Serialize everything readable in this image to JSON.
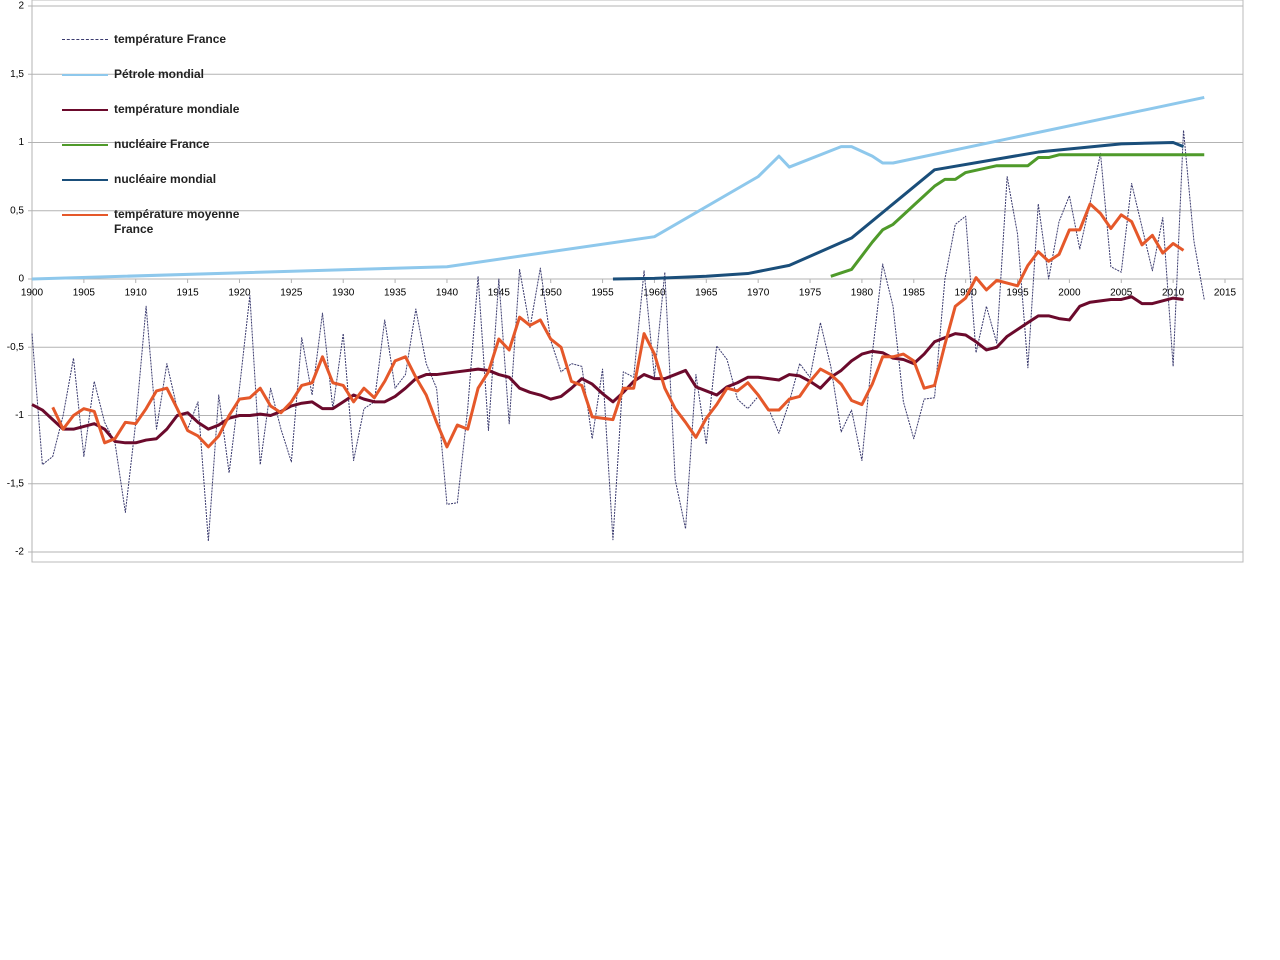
{
  "chart_data": {
    "type": "line",
    "xlim": [
      1900,
      2015
    ],
    "ylim": [
      -2,
      2
    ],
    "xticks": [
      1900,
      1905,
      1910,
      1915,
      1920,
      1925,
      1930,
      1935,
      1940,
      1945,
      1950,
      1955,
      1960,
      1965,
      1970,
      1975,
      1980,
      1985,
      1990,
      1995,
      2000,
      2005,
      2010,
      2015
    ],
    "yticks": [
      -2,
      {
        "value": -1.5,
        "label": "-1,5"
      },
      -1,
      {
        "value": -0.5,
        "label": "-0,5"
      },
      0,
      {
        "value": 0.5,
        "label": "0,5"
      },
      1,
      {
        "value": 1.5,
        "label": "1,5"
      },
      2
    ],
    "grid": true,
    "legend": "upper left",
    "series": [
      {
        "name": "température France",
        "color": "#3a3a6e",
        "dashed": true,
        "x": [
          1900,
          1901,
          1902,
          1903,
          1904,
          1905,
          1906,
          1907,
          1908,
          1909,
          1910,
          1911,
          1912,
          1913,
          1914,
          1915,
          1916,
          1917,
          1918,
          1919,
          1920,
          1921,
          1922,
          1923,
          1924,
          1925,
          1926,
          1927,
          1928,
          1929,
          1930,
          1931,
          1932,
          1933,
          1934,
          1935,
          1936,
          1937,
          1938,
          1939,
          1940,
          1941,
          1942,
          1943,
          1944,
          1945,
          1946,
          1947,
          1948,
          1949,
          1950,
          1951,
          1952,
          1953,
          1954,
          1955,
          1956,
          1957,
          1958,
          1959,
          1960,
          1961,
          1962,
          1963,
          1964,
          1965,
          1966,
          1967,
          1968,
          1969,
          1970,
          1971,
          1972,
          1973,
          1974,
          1975,
          1976,
          1977,
          1978,
          1979,
          1980,
          1981,
          1982,
          1983,
          1984,
          1985,
          1986,
          1987,
          1988,
          1989,
          1990,
          1991,
          1992,
          1993,
          1994,
          1995,
          1996,
          1997,
          1998,
          1999,
          2000,
          2001,
          2002,
          2003,
          2004,
          2005,
          2006,
          2007,
          2008,
          2009,
          2010,
          2011,
          2012,
          2013
        ],
        "values": [
          -0.4,
          -1.36,
          -1.3,
          -1.0,
          -0.58,
          -1.3,
          -0.75,
          -1.05,
          -1.2,
          -1.71,
          -1.05,
          -0.2,
          -1.1,
          -0.62,
          -0.95,
          -1.1,
          -0.9,
          -1.92,
          -0.85,
          -1.42,
          -0.8,
          -0.12,
          -1.36,
          -0.8,
          -1.1,
          -1.34,
          -0.43,
          -0.85,
          -0.25,
          -0.95,
          -0.4,
          -1.33,
          -0.95,
          -0.9,
          -0.3,
          -0.8,
          -0.7,
          -0.22,
          -0.62,
          -0.8,
          -1.65,
          -1.64,
          -0.95,
          0.02,
          -1.11,
          0.0,
          -1.06,
          0.07,
          -0.36,
          0.08,
          -0.45,
          -0.68,
          -0.62,
          -0.64,
          -1.17,
          -0.66,
          -1.91,
          -0.68,
          -0.72,
          0.06,
          -0.72,
          0.05,
          -1.47,
          -1.83,
          -0.7,
          -1.21,
          -0.49,
          -0.59,
          -0.88,
          -0.95,
          -0.86,
          -0.95,
          -1.13,
          -0.9,
          -0.62,
          -0.72,
          -0.32,
          -0.64,
          -1.12,
          -0.96,
          -1.33,
          -0.55,
          0.11,
          -0.2,
          -0.9,
          -1.17,
          -0.88,
          -0.87,
          0.0,
          0.4,
          0.46,
          -0.54,
          -0.2,
          -0.47,
          0.75,
          0.33,
          -0.65,
          0.55,
          0.0,
          0.42,
          0.61,
          0.22,
          0.56,
          0.92,
          0.09,
          0.05,
          0.7,
          0.38,
          0.06,
          0.45,
          -0.64,
          1.09,
          0.28,
          -0.15
        ]
      },
      {
        "name": "Pétrole mondial",
        "color": "#8ec8ec",
        "x": [
          1900,
          1940,
          1960,
          1970,
          1972,
          1973,
          1978,
          1979,
          1981,
          1982,
          1983,
          2013
        ],
        "values": [
          0,
          0.09,
          0.31,
          0.75,
          0.9,
          0.82,
          0.97,
          0.97,
          0.9,
          0.85,
          0.85,
          1.33
        ]
      },
      {
        "name": "température mondiale",
        "color": "#6b0a2c",
        "x": [
          1900,
          1901,
          1902,
          1903,
          1904,
          1905,
          1906,
          1907,
          1908,
          1909,
          1910,
          1911,
          1912,
          1913,
          1914,
          1915,
          1916,
          1917,
          1918,
          1919,
          1920,
          1921,
          1922,
          1923,
          1924,
          1925,
          1926,
          1927,
          1928,
          1929,
          1930,
          1931,
          1932,
          1933,
          1934,
          1935,
          1936,
          1937,
          1938,
          1939,
          1940,
          1941,
          1942,
          1943,
          1944,
          1945,
          1946,
          1947,
          1948,
          1949,
          1950,
          1951,
          1952,
          1953,
          1954,
          1955,
          1956,
          1957,
          1958,
          1959,
          1960,
          1961,
          1962,
          1963,
          1964,
          1965,
          1966,
          1967,
          1968,
          1969,
          1970,
          1971,
          1972,
          1973,
          1974,
          1975,
          1976,
          1977,
          1978,
          1979,
          1980,
          1981,
          1982,
          1983,
          1984,
          1985,
          1986,
          1987,
          1988,
          1989,
          1990,
          1991,
          1992,
          1993,
          1994,
          1995,
          1996,
          1997,
          1998,
          1999,
          2000,
          2001,
          2002,
          2003,
          2004,
          2005,
          2006,
          2007,
          2008,
          2009,
          2010,
          2011
        ],
        "values": [
          -0.92,
          -0.96,
          -1.03,
          -1.1,
          -1.1,
          -1.08,
          -1.06,
          -1.1,
          -1.19,
          -1.2,
          -1.2,
          -1.18,
          -1.17,
          -1.1,
          -1.0,
          -0.98,
          -1.05,
          -1.1,
          -1.07,
          -1.02,
          -1.0,
          -1.0,
          -0.99,
          -1.0,
          -0.97,
          -0.93,
          -0.91,
          -0.9,
          -0.95,
          -0.95,
          -0.9,
          -0.85,
          -0.88,
          -0.9,
          -0.9,
          -0.86,
          -0.8,
          -0.73,
          -0.7,
          -0.7,
          -0.69,
          -0.68,
          -0.67,
          -0.66,
          -0.67,
          -0.7,
          -0.72,
          -0.8,
          -0.83,
          -0.85,
          -0.88,
          -0.86,
          -0.8,
          -0.73,
          -0.77,
          -0.84,
          -0.9,
          -0.83,
          -0.75,
          -0.7,
          -0.73,
          -0.73,
          -0.7,
          -0.67,
          -0.79,
          -0.82,
          -0.85,
          -0.79,
          -0.76,
          -0.72,
          -0.72,
          -0.73,
          -0.74,
          -0.7,
          -0.71,
          -0.75,
          -0.8,
          -0.72,
          -0.67,
          -0.6,
          -0.55,
          -0.53,
          -0.54,
          -0.58,
          -0.59,
          -0.62,
          -0.55,
          -0.46,
          -0.43,
          -0.4,
          -0.41,
          -0.46,
          -0.52,
          -0.5,
          -0.42,
          -0.37,
          -0.32,
          -0.27,
          -0.27,
          -0.29,
          -0.3,
          -0.2,
          -0.17,
          -0.16,
          -0.15,
          -0.15,
          -0.13,
          -0.18,
          -0.18,
          -0.16,
          -0.14,
          -0.15
        ]
      },
      {
        "name": "nucléaire France",
        "color": "#4f9a2a",
        "x": [
          1977,
          1979,
          1980,
          1981,
          1982,
          1983,
          1984,
          1985,
          1986,
          1987,
          1988,
          1989,
          1990,
          1993,
          1996,
          1997,
          1998,
          1999,
          2013
        ],
        "values": [
          0.02,
          0.07,
          0.17,
          0.27,
          0.36,
          0.4,
          0.47,
          0.54,
          0.61,
          0.68,
          0.73,
          0.73,
          0.78,
          0.83,
          0.83,
          0.89,
          0.89,
          0.91,
          0.91
        ]
      },
      {
        "name": "nucléaire mondial",
        "color": "#1a4e7a",
        "x": [
          1956,
          1960,
          1965,
          1969,
          1973,
          1979,
          1983,
          1987,
          1997,
          2005,
          2010,
          2011
        ],
        "values": [
          0,
          0.005,
          0.02,
          0.04,
          0.1,
          0.3,
          0.55,
          0.8,
          0.93,
          0.99,
          1.0,
          0.97
        ]
      },
      {
        "name": "température moyenne France",
        "color": "#e5582a",
        "x": [
          1902,
          1903,
          1904,
          1905,
          1906,
          1907,
          1908,
          1909,
          1910,
          1911,
          1912,
          1913,
          1914,
          1915,
          1916,
          1917,
          1918,
          1919,
          1920,
          1921,
          1922,
          1923,
          1924,
          1925,
          1926,
          1927,
          1928,
          1929,
          1930,
          1931,
          1932,
          1933,
          1934,
          1935,
          1936,
          1937,
          1938,
          1939,
          1940,
          1941,
          1942,
          1943,
          1944,
          1945,
          1946,
          1947,
          1948,
          1949,
          1950,
          1951,
          1952,
          1953,
          1954,
          1955,
          1956,
          1957,
          1958,
          1959,
          1960,
          1961,
          1962,
          1963,
          1964,
          1965,
          1966,
          1967,
          1968,
          1969,
          1970,
          1971,
          1972,
          1973,
          1974,
          1975,
          1976,
          1977,
          1978,
          1979,
          1980,
          1981,
          1982,
          1983,
          1984,
          1985,
          1986,
          1987,
          1988,
          1989,
          1990,
          1991,
          1992,
          1993,
          1994,
          1995,
          1996,
          1997,
          1998,
          1999,
          2000,
          2001,
          2002,
          2003,
          2004,
          2005,
          2006,
          2007,
          2008,
          2009,
          2010,
          2011
        ],
        "values": [
          -0.94,
          -1.1,
          -1.0,
          -0.95,
          -0.97,
          -1.2,
          -1.17,
          -1.05,
          -1.06,
          -0.95,
          -0.82,
          -0.8,
          -0.95,
          -1.11,
          -1.15,
          -1.23,
          -1.15,
          -1.0,
          -0.88,
          -0.87,
          -0.8,
          -0.93,
          -0.98,
          -0.9,
          -0.78,
          -0.76,
          -0.57,
          -0.76,
          -0.78,
          -0.9,
          -0.8,
          -0.87,
          -0.75,
          -0.6,
          -0.57,
          -0.72,
          -0.85,
          -1.05,
          -1.23,
          -1.07,
          -1.1,
          -0.8,
          -0.68,
          -0.44,
          -0.52,
          -0.28,
          -0.34,
          -0.3,
          -0.44,
          -0.5,
          -0.75,
          -0.78,
          -1.01,
          -1.02,
          -1.03,
          -0.8,
          -0.8,
          -0.4,
          -0.55,
          -0.8,
          -0.95,
          -1.05,
          -1.16,
          -1.02,
          -0.92,
          -0.8,
          -0.82,
          -0.76,
          -0.85,
          -0.96,
          -0.96,
          -0.88,
          -0.86,
          -0.75,
          -0.66,
          -0.7,
          -0.77,
          -0.89,
          -0.92,
          -0.77,
          -0.57,
          -0.57,
          -0.55,
          -0.6,
          -0.8,
          -0.78,
          -0.48,
          -0.2,
          -0.14,
          0.01,
          -0.08,
          -0.01,
          -0.03,
          -0.05,
          0.1,
          0.2,
          0.13,
          0.18,
          0.36,
          0.36,
          0.55,
          0.48,
          0.37,
          0.47,
          0.42,
          0.25,
          0.32,
          0.19,
          0.26,
          0.21
        ]
      }
    ]
  }
}
